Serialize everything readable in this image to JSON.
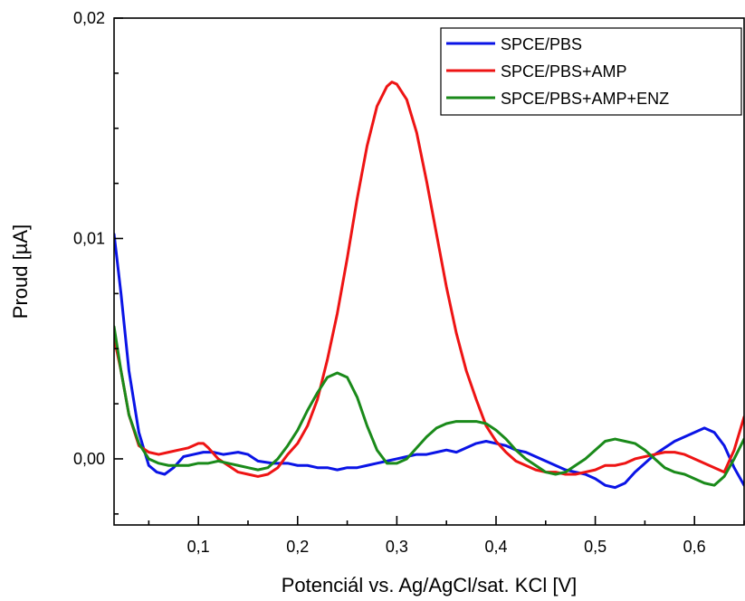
{
  "chart_data": {
    "type": "line",
    "xlabel": "Potenciál vs. Ag/AgCl/sat. KCl [V]",
    "ylabel": "Proud [µA]",
    "xlim": [
      0.015,
      0.65
    ],
    "ylim": [
      -0.003,
      0.02
    ],
    "x_ticks": [
      0.1,
      0.2,
      0.3,
      0.4,
      0.5,
      0.6
    ],
    "x_tick_labels": [
      "0,1",
      "0,2",
      "0,3",
      "0,4",
      "0,5",
      "0,6"
    ],
    "x_minor_ticks": [
      0.05,
      0.15,
      0.25,
      0.35,
      0.45,
      0.55,
      0.65
    ],
    "y_ticks": [
      0.0,
      0.01,
      0.02
    ],
    "y_tick_labels": [
      "0,00",
      "0,01",
      "0,02"
    ],
    "y_minor_ticks": [
      -0.0025,
      0.0025,
      0.005,
      0.0075,
      0.0125,
      0.015,
      0.0175
    ],
    "legend_position": "top-right",
    "series": [
      {
        "name": "SPCE/PBS",
        "color": "#0a14e6",
        "points": [
          [
            0.015,
            0.0102
          ],
          [
            0.022,
            0.0075
          ],
          [
            0.03,
            0.004
          ],
          [
            0.04,
            0.0012
          ],
          [
            0.05,
            -0.0003
          ],
          [
            0.058,
            -0.0006
          ],
          [
            0.066,
            -0.0007
          ],
          [
            0.075,
            -0.0004
          ],
          [
            0.085,
            0.0001
          ],
          [
            0.095,
            0.0002
          ],
          [
            0.105,
            0.0003
          ],
          [
            0.115,
            0.0003
          ],
          [
            0.125,
            0.0002
          ],
          [
            0.14,
            0.0003
          ],
          [
            0.15,
            0.0002
          ],
          [
            0.16,
            -0.0001
          ],
          [
            0.175,
            -0.0002
          ],
          [
            0.19,
            -0.0002
          ],
          [
            0.2,
            -0.0003
          ],
          [
            0.21,
            -0.0003
          ],
          [
            0.22,
            -0.0004
          ],
          [
            0.23,
            -0.0004
          ],
          [
            0.24,
            -0.0005
          ],
          [
            0.25,
            -0.0004
          ],
          [
            0.26,
            -0.0004
          ],
          [
            0.27,
            -0.0003
          ],
          [
            0.28,
            -0.0002
          ],
          [
            0.29,
            -0.0001
          ],
          [
            0.3,
            0.0
          ],
          [
            0.31,
            0.0001
          ],
          [
            0.32,
            0.0002
          ],
          [
            0.33,
            0.0002
          ],
          [
            0.34,
            0.0003
          ],
          [
            0.35,
            0.0004
          ],
          [
            0.36,
            0.0003
          ],
          [
            0.37,
            0.0005
          ],
          [
            0.38,
            0.0007
          ],
          [
            0.39,
            0.0008
          ],
          [
            0.4,
            0.0007
          ],
          [
            0.41,
            0.0006
          ],
          [
            0.42,
            0.0004
          ],
          [
            0.43,
            0.0003
          ],
          [
            0.44,
            0.0001
          ],
          [
            0.45,
            -0.0001
          ],
          [
            0.46,
            -0.0003
          ],
          [
            0.47,
            -0.0005
          ],
          [
            0.48,
            -0.0006
          ],
          [
            0.49,
            -0.0007
          ],
          [
            0.5,
            -0.0009
          ],
          [
            0.51,
            -0.0012
          ],
          [
            0.52,
            -0.0013
          ],
          [
            0.53,
            -0.0011
          ],
          [
            0.54,
            -0.0006
          ],
          [
            0.55,
            -0.0002
          ],
          [
            0.56,
            0.0002
          ],
          [
            0.57,
            0.0005
          ],
          [
            0.58,
            0.0008
          ],
          [
            0.59,
            0.001
          ],
          [
            0.6,
            0.0012
          ],
          [
            0.61,
            0.0014
          ],
          [
            0.62,
            0.0012
          ],
          [
            0.63,
            0.0006
          ],
          [
            0.64,
            -0.0004
          ],
          [
            0.65,
            -0.0012
          ]
        ]
      },
      {
        "name": "SPCE/PBS+AMP",
        "color": "#ee1414",
        "points": [
          [
            0.015,
            0.0055
          ],
          [
            0.022,
            0.004
          ],
          [
            0.03,
            0.002
          ],
          [
            0.04,
            0.0006
          ],
          [
            0.05,
            0.0003
          ],
          [
            0.06,
            0.0002
          ],
          [
            0.07,
            0.0003
          ],
          [
            0.08,
            0.0004
          ],
          [
            0.09,
            0.0005
          ],
          [
            0.1,
            0.0007
          ],
          [
            0.105,
            0.0007
          ],
          [
            0.11,
            0.0005
          ],
          [
            0.12,
            0.0
          ],
          [
            0.13,
            -0.0003
          ],
          [
            0.14,
            -0.0006
          ],
          [
            0.15,
            -0.0007
          ],
          [
            0.16,
            -0.0008
          ],
          [
            0.17,
            -0.0007
          ],
          [
            0.18,
            -0.0004
          ],
          [
            0.19,
            0.0002
          ],
          [
            0.2,
            0.0007
          ],
          [
            0.21,
            0.0015
          ],
          [
            0.22,
            0.0027
          ],
          [
            0.23,
            0.0045
          ],
          [
            0.24,
            0.0066
          ],
          [
            0.25,
            0.0091
          ],
          [
            0.26,
            0.0118
          ],
          [
            0.27,
            0.0142
          ],
          [
            0.28,
            0.016
          ],
          [
            0.29,
            0.0169
          ],
          [
            0.295,
            0.0171
          ],
          [
            0.3,
            0.017
          ],
          [
            0.31,
            0.0163
          ],
          [
            0.32,
            0.0148
          ],
          [
            0.33,
            0.0126
          ],
          [
            0.34,
            0.0102
          ],
          [
            0.35,
            0.0078
          ],
          [
            0.36,
            0.0057
          ],
          [
            0.37,
            0.004
          ],
          [
            0.38,
            0.0027
          ],
          [
            0.39,
            0.0015
          ],
          [
            0.4,
            0.0008
          ],
          [
            0.41,
            0.0003
          ],
          [
            0.42,
            -0.0001
          ],
          [
            0.43,
            -0.0003
          ],
          [
            0.44,
            -0.0005
          ],
          [
            0.45,
            -0.0006
          ],
          [
            0.46,
            -0.0006
          ],
          [
            0.47,
            -0.0007
          ],
          [
            0.48,
            -0.0007
          ],
          [
            0.49,
            -0.0006
          ],
          [
            0.5,
            -0.0005
          ],
          [
            0.51,
            -0.0003
          ],
          [
            0.52,
            -0.0003
          ],
          [
            0.53,
            -0.0002
          ],
          [
            0.54,
            0.0
          ],
          [
            0.55,
            0.0001
          ],
          [
            0.56,
            0.0002
          ],
          [
            0.57,
            0.0003
          ],
          [
            0.58,
            0.0003
          ],
          [
            0.59,
            0.0002
          ],
          [
            0.6,
            0.0
          ],
          [
            0.61,
            -0.0002
          ],
          [
            0.62,
            -0.0004
          ],
          [
            0.63,
            -0.0006
          ],
          [
            0.64,
            0.0004
          ],
          [
            0.65,
            0.0019
          ]
        ]
      },
      {
        "name": "SPCE/PBS+AMP+ENZ",
        "color": "#1a8a1a",
        "points": [
          [
            0.015,
            0.006
          ],
          [
            0.022,
            0.004
          ],
          [
            0.03,
            0.002
          ],
          [
            0.04,
            0.0007
          ],
          [
            0.05,
            0.0
          ],
          [
            0.06,
            -0.0002
          ],
          [
            0.07,
            -0.0003
          ],
          [
            0.08,
            -0.0003
          ],
          [
            0.09,
            -0.0003
          ],
          [
            0.1,
            -0.0002
          ],
          [
            0.11,
            -0.0002
          ],
          [
            0.12,
            -0.0001
          ],
          [
            0.13,
            -0.0002
          ],
          [
            0.14,
            -0.0003
          ],
          [
            0.15,
            -0.0004
          ],
          [
            0.16,
            -0.0005
          ],
          [
            0.17,
            -0.0004
          ],
          [
            0.18,
            0.0
          ],
          [
            0.19,
            0.0006
          ],
          [
            0.2,
            0.0013
          ],
          [
            0.21,
            0.0022
          ],
          [
            0.22,
            0.003
          ],
          [
            0.23,
            0.0037
          ],
          [
            0.24,
            0.0039
          ],
          [
            0.25,
            0.0037
          ],
          [
            0.26,
            0.0028
          ],
          [
            0.27,
            0.0015
          ],
          [
            0.28,
            0.0004
          ],
          [
            0.29,
            -0.0002
          ],
          [
            0.3,
            -0.0002
          ],
          [
            0.31,
            0.0
          ],
          [
            0.32,
            0.0005
          ],
          [
            0.33,
            0.001
          ],
          [
            0.34,
            0.0014
          ],
          [
            0.35,
            0.0016
          ],
          [
            0.36,
            0.0017
          ],
          [
            0.37,
            0.0017
          ],
          [
            0.38,
            0.0017
          ],
          [
            0.39,
            0.0016
          ],
          [
            0.4,
            0.0013
          ],
          [
            0.41,
            0.0009
          ],
          [
            0.42,
            0.0004
          ],
          [
            0.43,
            0.0
          ],
          [
            0.44,
            -0.0003
          ],
          [
            0.45,
            -0.0006
          ],
          [
            0.46,
            -0.0007
          ],
          [
            0.47,
            -0.0006
          ],
          [
            0.48,
            -0.0003
          ],
          [
            0.49,
            0.0
          ],
          [
            0.5,
            0.0004
          ],
          [
            0.51,
            0.0008
          ],
          [
            0.52,
            0.0009
          ],
          [
            0.53,
            0.0008
          ],
          [
            0.54,
            0.0007
          ],
          [
            0.55,
            0.0004
          ],
          [
            0.56,
            0.0
          ],
          [
            0.57,
            -0.0004
          ],
          [
            0.58,
            -0.0006
          ],
          [
            0.59,
            -0.0007
          ],
          [
            0.6,
            -0.0009
          ],
          [
            0.61,
            -0.0011
          ],
          [
            0.62,
            -0.0012
          ],
          [
            0.63,
            -0.0008
          ],
          [
            0.64,
            0.0
          ],
          [
            0.65,
            0.0009
          ]
        ]
      }
    ]
  }
}
